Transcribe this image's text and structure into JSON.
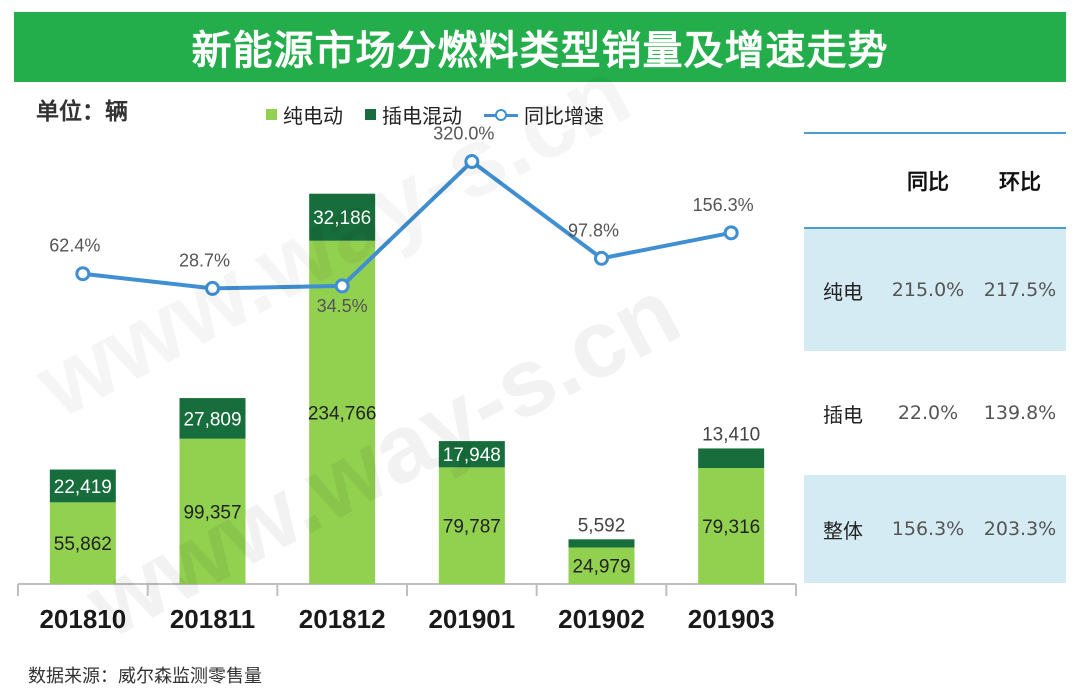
{
  "title": "新能源市场分燃料类型销量及增速走势",
  "unit_label": "单位：辆",
  "legend": {
    "bev": "纯电动",
    "phev": "插电混动",
    "yoy": "同比增速"
  },
  "colors": {
    "title_bg": "#24ad4b",
    "bev": "#92d050",
    "phev": "#176d3b",
    "yoy_line": "#3f8fd2",
    "table_shade": "#d5ebf4"
  },
  "chart_data": {
    "type": "bar",
    "stacked": true,
    "categories": [
      "201810",
      "201811",
      "201812",
      "201901",
      "201902",
      "201903"
    ],
    "series": [
      {
        "name": "纯电动",
        "values": [
          55862,
          99357,
          234766,
          79787,
          24979,
          79316
        ],
        "labels": [
          "55,862",
          "99,357",
          "234,766",
          "79,787",
          "24,979",
          "79,316"
        ]
      },
      {
        "name": "插电混动",
        "values": [
          22419,
          27809,
          32186,
          17948,
          5592,
          13410
        ],
        "labels": [
          "22,419",
          "27,809",
          "32,186",
          "17,948",
          "5,592",
          "13,410"
        ]
      }
    ],
    "line_series": {
      "name": "同比增速",
      "values": [
        62.4,
        28.7,
        34.5,
        320.0,
        97.8,
        156.3
      ],
      "labels": [
        "62.4%",
        "28.7%",
        "34.5%",
        "320.0%",
        "97.8%",
        "156.3%"
      ],
      "ylim": [
        -650,
        420
      ]
    },
    "ylim": [
      0,
      290000
    ],
    "xlabel": "",
    "ylabel": "",
    "legend_position": "top"
  },
  "table": {
    "headers": [
      "",
      "同比",
      "环比"
    ],
    "rows": [
      {
        "label": "纯电",
        "yoy": "215.0%",
        "mom": "217.5%"
      },
      {
        "label": "插电",
        "yoy": "22.0%",
        "mom": "139.8%"
      },
      {
        "label": "整体",
        "yoy": "156.3%",
        "mom": "203.3%"
      }
    ]
  },
  "source": "数据来源：威尔森监测零售量",
  "watermark": "www.way-s.cn"
}
